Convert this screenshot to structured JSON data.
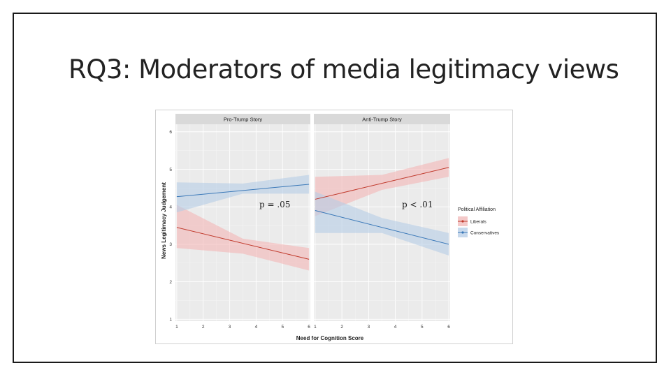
{
  "slide": {
    "title": "RQ3: Moderators of media legitimacy views"
  },
  "chart_data": {
    "type": "line",
    "ylabel": "News Legitimacy Judgement",
    "xlabel": "Need for Cognition Score",
    "x_ticks": [
      1,
      2,
      3,
      4,
      5,
      6
    ],
    "y_ticks": [
      1,
      2,
      3,
      4,
      5,
      6
    ],
    "xlim": [
      0.95,
      6.05
    ],
    "ylim": [
      0.95,
      6.2
    ],
    "legend": {
      "title": "Political Affiliation",
      "entries": [
        {
          "name": "Liberals",
          "color": "#c0392b",
          "band_color": "#f4b6b6"
        },
        {
          "name": "Conservatives",
          "color": "#3a78b8",
          "band_color": "#b6cde6"
        }
      ],
      "position": "right"
    },
    "panels": [
      {
        "title": "Pro-Trump Story",
        "annotation": "p = .05",
        "series": [
          {
            "name": "Liberals",
            "x": [
              1,
              6
            ],
            "y": [
              3.45,
              2.6
            ],
            "lower": [
              [
                1,
                2.9
              ],
              [
                3.5,
                2.75
              ],
              [
                6,
                2.3
              ]
            ],
            "upper": [
              [
                1,
                4.05
              ],
              [
                3.5,
                3.15
              ],
              [
                6,
                2.9
              ]
            ]
          },
          {
            "name": "Conservatives",
            "x": [
              1,
              6
            ],
            "y": [
              4.27,
              4.6
            ],
            "lower": [
              [
                1,
                3.85
              ],
              [
                3.5,
                4.35
              ],
              [
                6,
                4.35
              ]
            ],
            "upper": [
              [
                1,
                4.65
              ],
              [
                3.5,
                4.62
              ],
              [
                6,
                4.85
              ]
            ]
          }
        ]
      },
      {
        "title": "Anti-Trump Story",
        "annotation": "p < .01",
        "series": [
          {
            "name": "Liberals",
            "x": [
              1,
              6
            ],
            "y": [
              4.2,
              5.05
            ],
            "lower": [
              [
                1,
                3.75
              ],
              [
                3.5,
                4.45
              ],
              [
                6,
                4.8
              ]
            ],
            "upper": [
              [
                1,
                4.8
              ],
              [
                3.5,
                4.85
              ],
              [
                6,
                5.3
              ]
            ]
          },
          {
            "name": "Conservatives",
            "x": [
              1,
              6
            ],
            "y": [
              3.9,
              3.0
            ],
            "lower": [
              [
                1,
                3.3
              ],
              [
                3.5,
                3.3
              ],
              [
                6,
                2.7
              ]
            ],
            "upper": [
              [
                1,
                4.4
              ],
              [
                3.5,
                3.7
              ],
              [
                6,
                3.3
              ]
            ]
          }
        ]
      }
    ]
  }
}
